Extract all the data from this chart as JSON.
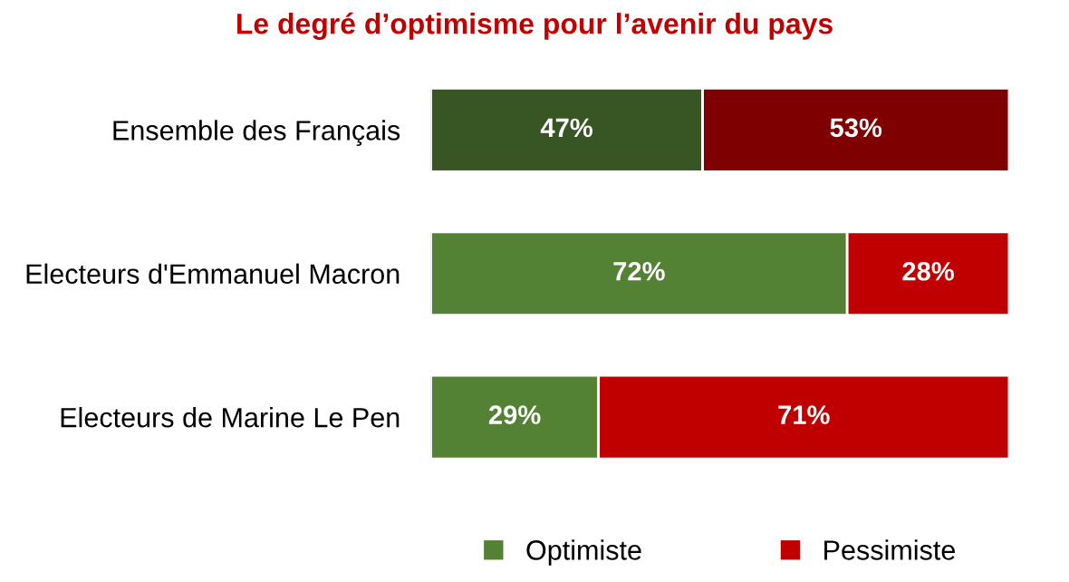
{
  "chart_data": {
    "type": "bar",
    "title": "Le degré d’optimisme pour l’avenir du pays",
    "orientation": "horizontal",
    "stacked": true,
    "categories": [
      "Ensemble des Français",
      "Electeurs d'Emmanuel Macron",
      "Electeurs de Marine Le Pen"
    ],
    "series": [
      {
        "name": "Optimiste",
        "color": "#548235",
        "colors": [
          "#375623",
          "#548235",
          "#548235"
        ],
        "values": [
          47,
          72,
          29
        ],
        "value_labels": [
          "47%",
          "72%",
          "29%"
        ]
      },
      {
        "name": "Pessimiste",
        "color": "#c00000",
        "colors": [
          "#7f0000",
          "#c00000",
          "#c00000"
        ],
        "values": [
          53,
          28,
          71
        ],
        "value_labels": [
          "53%",
          "28%",
          "71%"
        ]
      }
    ],
    "legend": "bottom",
    "grid": false
  }
}
